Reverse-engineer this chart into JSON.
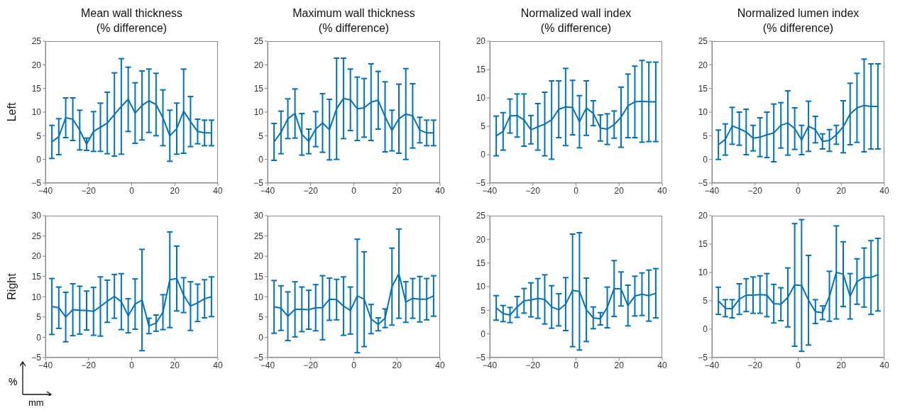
{
  "chart_data": [
    {
      "type": "line",
      "title": "Mean wall thickness",
      "subtitle": "(% difference)",
      "ylabel": "Left",
      "color": "#0072bd",
      "xlim": [
        -40,
        40
      ],
      "xticks": [
        -40,
        -20,
        0,
        20,
        40
      ],
      "ylim": [
        -5,
        25
      ],
      "yticks": [
        -5,
        0,
        5,
        10,
        15,
        20,
        25
      ],
      "x": [
        -37,
        -33.8,
        -30.6,
        -27.3,
        -24.1,
        -20.9,
        -17.7,
        -14.5,
        -11.3,
        -8,
        -4.8,
        -1.6,
        1.6,
        4.8,
        8,
        11.3,
        14.5,
        17.7,
        20.9,
        24.1,
        27.3,
        30.6,
        33.8,
        37
      ],
      "values": [
        3.7,
        4.8,
        8.8,
        8.5,
        6.2,
        3.2,
        5.9,
        6.8,
        7.7,
        9.5,
        11.2,
        12.7,
        9.8,
        11.4,
        12.4,
        11.6,
        8.8,
        5,
        6.5,
        10.2,
        8,
        5.9,
        5.6,
        5.6
      ],
      "errors": [
        3.5,
        3.8,
        4.2,
        4.5,
        4.2,
        1.3,
        4.2,
        5.1,
        6.5,
        8.8,
        10.1,
        6.8,
        6.4,
        7.3,
        6.7,
        6.6,
        5.9,
        5.4,
        5.4,
        8.9,
        5.3,
        2.6,
        2.7,
        2.7
      ]
    },
    {
      "type": "line",
      "title": "Maximum wall thickness",
      "subtitle": "(% difference)",
      "color": "#0072bd",
      "xlim": [
        -40,
        40
      ],
      "xticks": [
        -40,
        -20,
        0,
        20,
        40
      ],
      "ylim": [
        -5,
        25
      ],
      "yticks": [
        -5,
        0,
        5,
        10,
        15,
        20,
        25
      ],
      "x": [
        -37,
        -33.8,
        -30.6,
        -27.3,
        -24.1,
        -20.9,
        -17.7,
        -14.5,
        -11.3,
        -8,
        -4.8,
        -1.6,
        1.6,
        4.8,
        8,
        11.3,
        14.5,
        17.7,
        20.9,
        24.1,
        27.3,
        30.6,
        33.8,
        37
      ],
      "values": [
        3.7,
        5.7,
        8.6,
        9.7,
        5.3,
        3.8,
        6.4,
        7.7,
        6.3,
        10.7,
        12.9,
        12.6,
        10.7,
        10.9,
        12.1,
        12.5,
        9,
        6.1,
        8.6,
        9.6,
        9.2,
        6.2,
        5.6,
        5.6
      ],
      "errors": [
        3.9,
        4.5,
        4.2,
        5.2,
        4.4,
        2.6,
        3.7,
        6.2,
        6.4,
        10.7,
        8.5,
        6.5,
        6.7,
        6.2,
        8.1,
        6.1,
        7.4,
        4.3,
        7.3,
        9.6,
        6.8,
        2.7,
        2.7,
        2.7
      ]
    },
    {
      "type": "line",
      "title": "Normalized wall index",
      "subtitle": "(% difference)",
      "color": "#0072bd",
      "xlim": [
        -40,
        40
      ],
      "xticks": [
        -40,
        -20,
        0,
        20,
        40
      ],
      "ylim": [
        -5,
        20
      ],
      "yticks": [
        -5,
        0,
        5,
        10,
        15,
        20
      ],
      "x": [
        -37,
        -33.8,
        -30.6,
        -27.3,
        -24.1,
        -20.9,
        -17.7,
        -14.5,
        -11.3,
        -8,
        -4.8,
        -1.6,
        1.6,
        4.8,
        8,
        11.3,
        14.5,
        17.7,
        20.9,
        24.1,
        27.3,
        30.6,
        33.8,
        37
      ],
      "values": [
        3.3,
        4.1,
        6.8,
        6.9,
        6.1,
        4.4,
        4.9,
        5.4,
        6.1,
        8,
        8.4,
        8.3,
        5.8,
        8.2,
        7.3,
        4.7,
        4.5,
        5.3,
        6.6,
        8.6,
        9.3,
        9.4,
        9.3,
        9.3
      ],
      "errors": [
        3.5,
        3.3,
        3,
        3.8,
        4.6,
        2.5,
        4.1,
        5.6,
        6.9,
        5,
        6.8,
        4.8,
        4.6,
        4.8,
        2.2,
        2.3,
        2.7,
        2.4,
        5.3,
        5.6,
        6.3,
        7.2,
        7,
        7
      ]
    },
    {
      "type": "line",
      "title": "Normalized lumen index",
      "subtitle": "(% difference)",
      "color": "#0072bd",
      "xlim": [
        -40,
        40
      ],
      "xticks": [
        -40,
        -20,
        0,
        20,
        40
      ],
      "ylim": [
        -5,
        25
      ],
      "yticks": [
        -5,
        0,
        5,
        10,
        15,
        20,
        25
      ],
      "x": [
        -37,
        -33.8,
        -30.6,
        -27.3,
        -24.1,
        -20.9,
        -17.7,
        -14.5,
        -11.3,
        -8,
        -4.8,
        -1.6,
        1.6,
        4.8,
        8,
        11.3,
        14.5,
        17.7,
        20.9,
        24.1,
        27.3,
        30.6,
        33.8,
        37
      ],
      "values": [
        3.1,
        4.2,
        7.1,
        6.5,
        5.8,
        4.5,
        4.7,
        5.2,
        5.6,
        7.2,
        7.7,
        6.5,
        4.1,
        7,
        6.3,
        3.8,
        4,
        5.2,
        6.9,
        9.6,
        10.9,
        11.4,
        11.2,
        11.2
      ],
      "errors": [
        3.1,
        3.3,
        3.9,
        3.5,
        4.8,
        2.7,
        4.1,
        4.8,
        6.1,
        4.8,
        6.8,
        4.4,
        3.1,
        5.3,
        2.8,
        1.6,
        2.3,
        2,
        5.5,
        6.5,
        7.3,
        9.8,
        9,
        9
      ]
    },
    {
      "type": "line",
      "ylabel": "Right",
      "annotations": [
        "%",
        "mm"
      ],
      "color": "#0072bd",
      "xlim": [
        -40,
        40
      ],
      "xticks": [
        -40,
        -20,
        0,
        20,
        40
      ],
      "ylim": [
        -5,
        30
      ],
      "yticks": [
        -5,
        0,
        5,
        10,
        15,
        20,
        25,
        30
      ],
      "x": [
        -37,
        -33.8,
        -30.6,
        -27.3,
        -24.1,
        -20.9,
        -17.7,
        -14.5,
        -11.3,
        -8,
        -4.8,
        -1.6,
        1.6,
        4.8,
        8,
        11.3,
        14.5,
        17.7,
        20.9,
        24.1,
        27.3,
        30.6,
        33.8,
        37
      ],
      "values": [
        7.6,
        7.3,
        5,
        6.8,
        6.7,
        6.6,
        6.4,
        7.6,
        8.9,
        10.1,
        8.8,
        5.3,
        8.2,
        9.2,
        2.8,
        3.5,
        6.2,
        14.2,
        14.5,
        10.4,
        7.7,
        8.5,
        9.5,
        10
      ],
      "errors": [
        6.9,
        5.1,
        6.1,
        6.4,
        5.9,
        4.8,
        5.9,
        7.3,
        5.2,
        5.4,
        6.9,
        4.2,
        6.2,
        12.5,
        1.9,
        2,
        4.3,
        11.8,
        8,
        4.3,
        6,
        4.6,
        4.7,
        4.9
      ]
    },
    {
      "type": "line",
      "color": "#0072bd",
      "xlim": [
        -40,
        40
      ],
      "xticks": [
        -40,
        -20,
        0,
        20,
        40
      ],
      "ylim": [
        -5,
        30
      ],
      "yticks": [
        -5,
        0,
        5,
        10,
        15,
        20,
        25,
        30
      ],
      "x": [
        -37,
        -33.8,
        -30.6,
        -27.3,
        -24.1,
        -20.9,
        -17.7,
        -14.5,
        -11.3,
        -8,
        -4.8,
        -1.6,
        1.6,
        4.8,
        8,
        11.3,
        14.5,
        17.7,
        20.9,
        24.1,
        27.3,
        30.6,
        33.8,
        37
      ],
      "values": [
        7.5,
        7.2,
        5.2,
        6.9,
        6.9,
        6.8,
        7.3,
        7.3,
        9.4,
        9.3,
        7.7,
        6.6,
        10.2,
        9.4,
        4.5,
        3.2,
        4.7,
        12.5,
        15.7,
        8.7,
        9.6,
        9.4,
        9.4,
        10.2
      ],
      "errors": [
        6.5,
        5.5,
        6,
        6.8,
        5.5,
        4.8,
        5.7,
        7.9,
        5.2,
        5,
        7.2,
        5.8,
        14,
        11.7,
        3.6,
        1.6,
        2.3,
        9.5,
        11,
        5,
        4.9,
        5.6,
        5.1,
        5
      ]
    },
    {
      "type": "line",
      "color": "#0072bd",
      "xlim": [
        -40,
        40
      ],
      "xticks": [
        -40,
        -20,
        0,
        20,
        40
      ],
      "ylim": [
        -5,
        25
      ],
      "yticks": [
        -5,
        0,
        5,
        10,
        15,
        20,
        25
      ],
      "x": [
        -37,
        -33.8,
        -30.6,
        -27.3,
        -24.1,
        -20.9,
        -17.7,
        -14.5,
        -11.3,
        -8,
        -4.8,
        -1.6,
        1.6,
        4.8,
        8,
        11.3,
        14.5,
        17.7,
        20.9,
        24.1,
        27.3,
        30.6,
        33.8,
        37
      ],
      "values": [
        5.5,
        4.3,
        4,
        5.7,
        7,
        7.2,
        7.5,
        7.3,
        5.7,
        5.1,
        6.3,
        9.2,
        9,
        5.1,
        3.4,
        3.2,
        5.6,
        9.6,
        9.5,
        6,
        8,
        8.4,
        8.1,
        8.6
      ],
      "errors": [
        2.6,
        1.7,
        1.6,
        2.2,
        2.6,
        3.6,
        4.2,
        5.2,
        4.5,
        3.4,
        5.6,
        11.9,
        12.4,
        6.7,
        2.3,
        1.3,
        4.3,
        5.9,
        3.6,
        4.3,
        4.2,
        4.5,
        5.4,
        5.2
      ]
    },
    {
      "type": "line",
      "color": "#0072bd",
      "xlim": [
        -40,
        40
      ],
      "xticks": [
        -40,
        -20,
        0,
        20,
        40
      ],
      "ylim": [
        -5,
        20
      ],
      "yticks": [
        -5,
        0,
        5,
        10,
        15,
        20
      ],
      "x": [
        -37,
        -33.8,
        -30.6,
        -27.3,
        -24.1,
        -20.9,
        -17.7,
        -14.5,
        -11.3,
        -8,
        -4.8,
        -1.6,
        1.6,
        4.8,
        8,
        11.3,
        14.5,
        17.7,
        20.9,
        24.1,
        27.3,
        30.6,
        33.8,
        37
      ],
      "values": [
        5,
        3.7,
        3.6,
        5.3,
        6,
        6,
        6.1,
        6,
        4.5,
        4.4,
        5.6,
        7.8,
        7.7,
        5.1,
        3.1,
        2.9,
        5.8,
        10,
        9.7,
        5.8,
        8.4,
        9.1,
        9.1,
        9.6
      ],
      "errors": [
        2.4,
        1.5,
        1.6,
        2.7,
        2.9,
        3.2,
        3.3,
        3.8,
        3.4,
        2.9,
        5.2,
        10.8,
        11.6,
        7.9,
        2.1,
        1.2,
        4.4,
        8.2,
        5.7,
        4,
        4,
        5.2,
        6.5,
        6.4
      ]
    }
  ]
}
